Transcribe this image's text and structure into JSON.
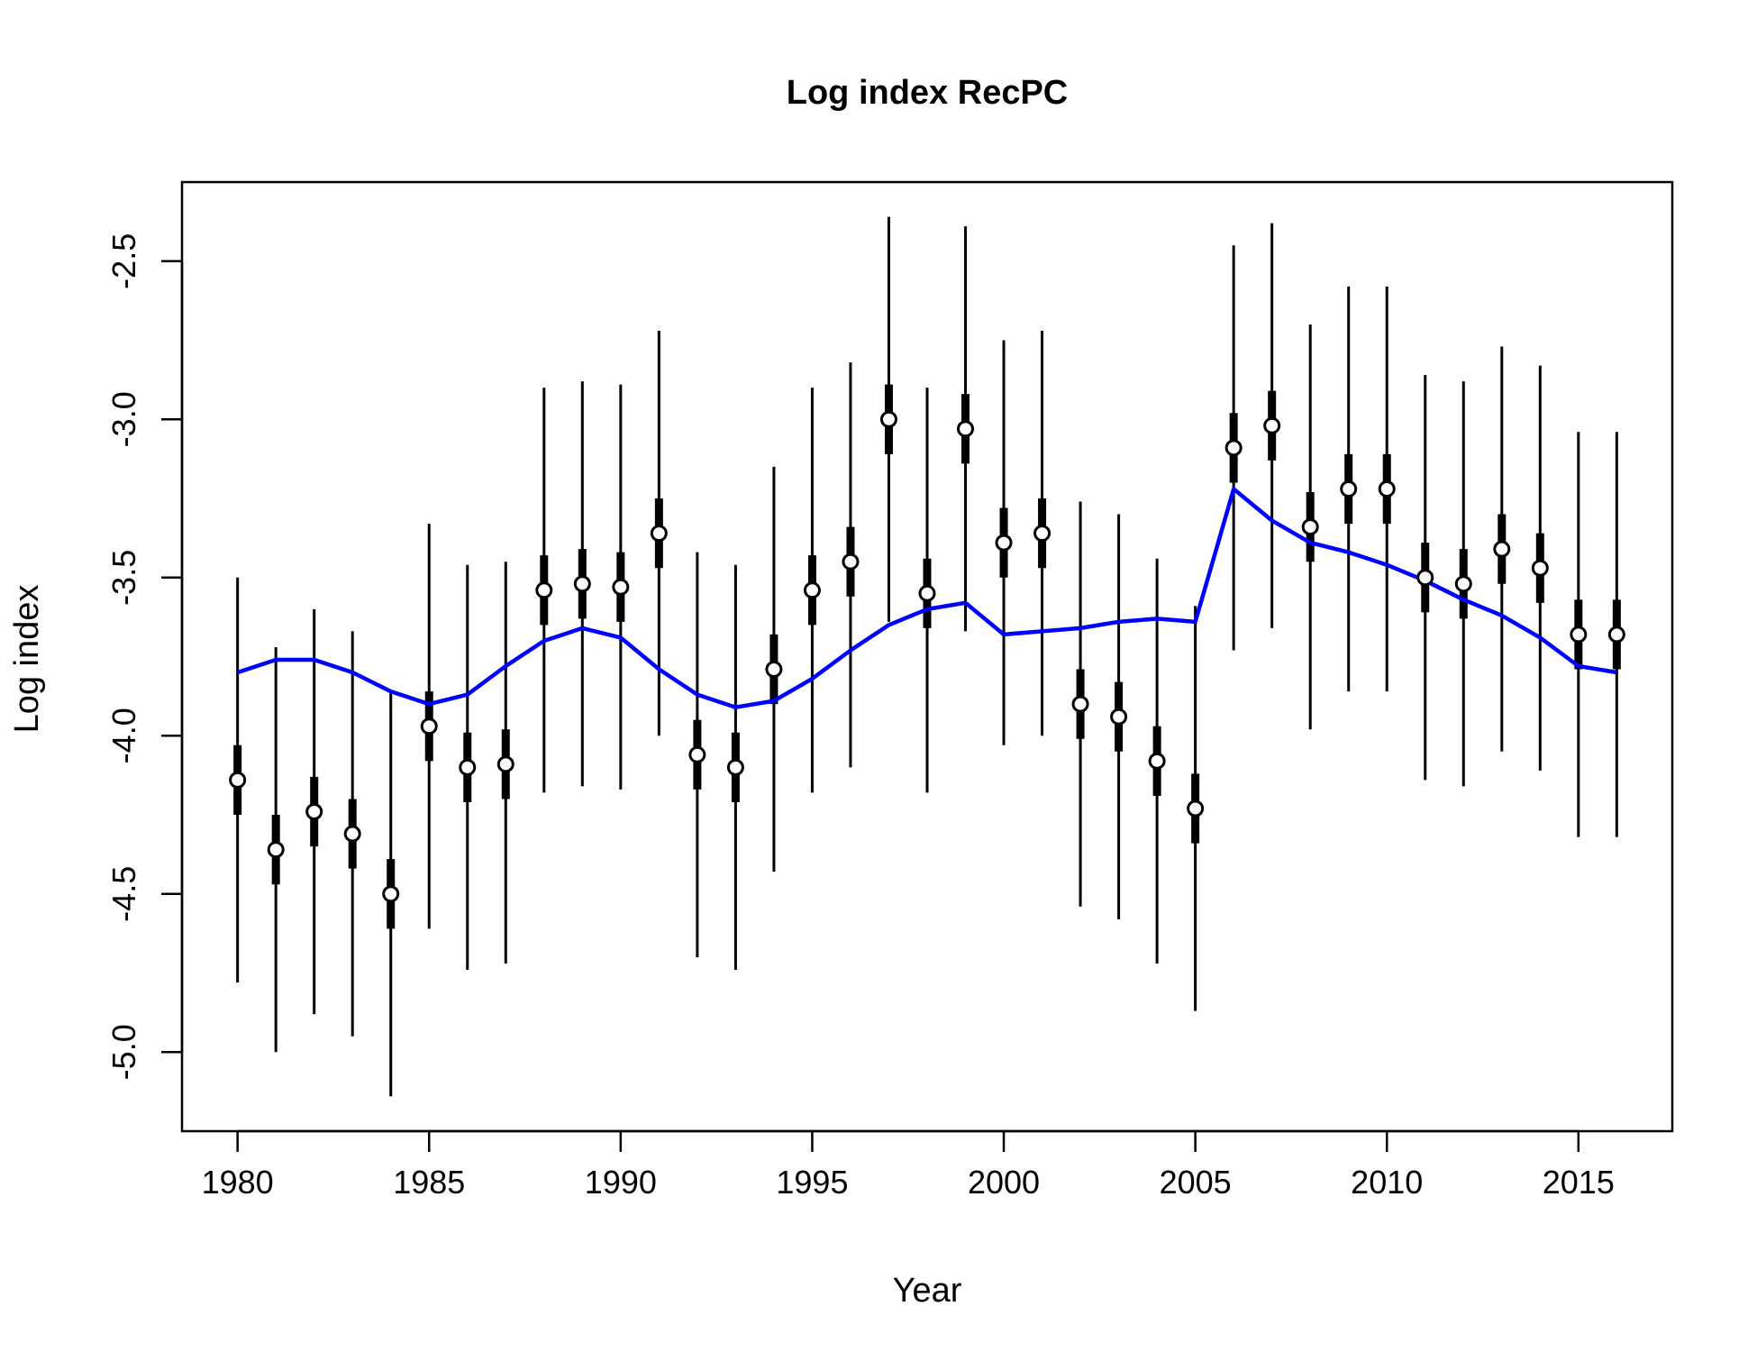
{
  "chart_data": {
    "type": "line",
    "title": "Log index RecPC",
    "xlabel": "Year",
    "ylabel": "Log index",
    "xlim": [
      1978.55,
      2017.45
    ],
    "ylim": [
      -5.25,
      -2.25
    ],
    "x_ticks": [
      "1980",
      "1985",
      "1990",
      "1995",
      "2000",
      "2005",
      "2010",
      "2015"
    ],
    "y_ticks": [
      "-5.0",
      "-4.5",
      "-4.0",
      "-3.5",
      "-3.0",
      "-2.5"
    ],
    "grid": false,
    "legend": "none",
    "colors": {
      "fit": "#0000ff",
      "observed": "#000000",
      "point_fill": "#ffffff"
    },
    "series": [
      {
        "kind": "observed",
        "x": [
          1980,
          1981,
          1982,
          1983,
          1984,
          1985,
          1986,
          1987,
          1988,
          1989,
          1990,
          1991,
          1992,
          1993,
          1994,
          1995,
          1996,
          1997,
          1998,
          1999,
          2000,
          2001,
          2002,
          2003,
          2004,
          2005,
          2006,
          2007,
          2008,
          2009,
          2010,
          2011,
          2012,
          2013,
          2014,
          2015,
          2016
        ],
        "y": [
          -4.14,
          -4.36,
          -4.24,
          -4.31,
          -4.5,
          -3.97,
          -4.1,
          -4.09,
          -3.54,
          -3.52,
          -3.53,
          -3.36,
          -4.06,
          -4.1,
          -3.79,
          -3.54,
          -3.45,
          -3.0,
          -3.55,
          -3.03,
          -3.39,
          -3.36,
          -3.9,
          -3.94,
          -4.08,
          -4.23,
          -3.09,
          -3.02,
          -3.34,
          -3.22,
          -3.22,
          -3.5,
          -3.52,
          -3.41,
          -3.47,
          -3.68,
          -3.68
        ],
        "ci_inner_half": [
          0.11,
          0.11,
          0.11,
          0.11,
          0.11,
          0.11,
          0.11,
          0.11,
          0.11,
          0.11,
          0.11,
          0.11,
          0.11,
          0.11,
          0.11,
          0.11,
          0.11,
          0.11,
          0.11,
          0.11,
          0.11,
          0.11,
          0.11,
          0.11,
          0.11,
          0.11,
          0.11,
          0.11,
          0.11,
          0.11,
          0.11,
          0.11,
          0.11,
          0.11,
          0.11,
          0.11,
          0.11
        ],
        "ci_outer_lower": [
          -4.78,
          -5.0,
          -4.88,
          -4.95,
          -5.14,
          -4.61,
          -4.74,
          -4.72,
          -4.18,
          -4.16,
          -4.17,
          -4.0,
          -4.7,
          -4.74,
          -4.43,
          -4.18,
          -4.1,
          -3.64,
          -4.18,
          -3.67,
          -4.03,
          -4.0,
          -4.54,
          -4.58,
          -4.72,
          -4.87,
          -3.73,
          -3.66,
          -3.98,
          -3.86,
          -3.86,
          -4.14,
          -4.16,
          -4.05,
          -4.11,
          -4.32,
          -4.32
        ],
        "ci_outer_upper": [
          -3.5,
          -3.72,
          -3.6,
          -3.67,
          -3.86,
          -3.33,
          -3.46,
          -3.45,
          -2.9,
          -2.88,
          -2.89,
          -2.72,
          -3.42,
          -3.46,
          -3.15,
          -2.9,
          -2.82,
          -2.36,
          -2.9,
          -2.39,
          -2.75,
          -2.72,
          -3.26,
          -3.3,
          -3.44,
          -3.59,
          -2.45,
          -2.38,
          -2.7,
          -2.58,
          -2.58,
          -2.86,
          -2.88,
          -2.77,
          -2.83,
          -3.04,
          -3.04
        ]
      },
      {
        "kind": "fit",
        "x": [
          1980,
          1981,
          1982,
          1983,
          1984,
          1985,
          1986,
          1987,
          1988,
          1989,
          1990,
          1991,
          1992,
          1993,
          1994,
          1995,
          1996,
          1997,
          1998,
          1999,
          2000,
          2001,
          2002,
          2003,
          2004,
          2005,
          2006,
          2007,
          2008,
          2009,
          2010,
          2011,
          2012,
          2013,
          2014,
          2015,
          2016
        ],
        "y": [
          -3.8,
          -3.76,
          -3.76,
          -3.8,
          -3.86,
          -3.9,
          -3.87,
          -3.78,
          -3.7,
          -3.66,
          -3.69,
          -3.79,
          -3.87,
          -3.91,
          -3.89,
          -3.82,
          -3.73,
          -3.65,
          -3.6,
          -3.58,
          -3.68,
          -3.67,
          -3.66,
          -3.64,
          -3.63,
          -3.64,
          -3.22,
          -3.32,
          -3.39,
          -3.42,
          -3.46,
          -3.51,
          -3.57,
          -3.62,
          -3.69,
          -3.78,
          -3.8
        ]
      }
    ]
  }
}
